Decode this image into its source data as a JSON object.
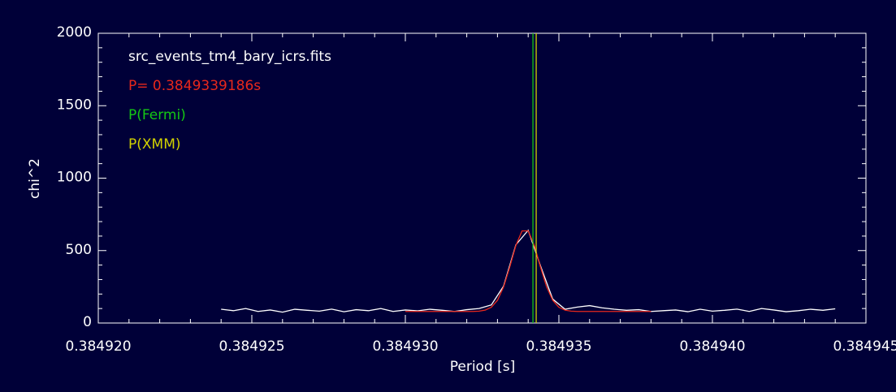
{
  "chart_data": {
    "type": "line",
    "title": "src_events_tm4_bary_icrs.fits",
    "x_label": "Period [s]",
    "y_label": "chi^2",
    "xlim": [
      0.38492,
      0.384945
    ],
    "ylim": [
      0,
      2000
    ],
    "xticks": [
      {
        "value": 0.38492,
        "label": "0.384920"
      },
      {
        "value": 0.384925,
        "label": "0.384925"
      },
      {
        "value": 0.38493,
        "label": "0.384930"
      },
      {
        "value": 0.384935,
        "label": "0.384935"
      },
      {
        "value": 0.38494,
        "label": "0.384940"
      },
      {
        "value": 0.384945,
        "label": "0.384945"
      }
    ],
    "yticks": [
      0,
      500,
      1000,
      1500,
      2000
    ],
    "x_minor": 5,
    "y_minor": 5,
    "background": "#000038",
    "axis_color": "#ffffff",
    "data": {
      "color": "#ffffff",
      "x": [
        0.384924,
        0.3849244,
        0.3849248,
        0.3849252,
        0.3849256,
        0.384926,
        0.3849264,
        0.3849268,
        0.3849272,
        0.3849276,
        0.384928,
        0.3849284,
        0.3849288,
        0.3849292,
        0.3849296,
        0.38493,
        0.3849304,
        0.3849308,
        0.3849312,
        0.3849316,
        0.384932,
        0.3849324,
        0.3849328,
        0.3849332,
        0.3849336,
        0.384934,
        0.3849344,
        0.3849348,
        0.3849352,
        0.3849356,
        0.384936,
        0.3849364,
        0.3849368,
        0.3849372,
        0.3849376,
        0.384938,
        0.3849384,
        0.3849388,
        0.3849392,
        0.3849396,
        0.38494,
        0.3849404,
        0.3849408,
        0.3849412,
        0.3849416,
        0.384942,
        0.3849424,
        0.3849428,
        0.3849432,
        0.3849436,
        0.384944
      ],
      "values": [
        95,
        85,
        100,
        80,
        90,
        75,
        95,
        88,
        82,
        96,
        78,
        92,
        85,
        100,
        80,
        90,
        84,
        95,
        88,
        80,
        92,
        100,
        125,
        255,
        540,
        640,
        395,
        165,
        95,
        110,
        120,
        105,
        95,
        88,
        92,
        80,
        85,
        90,
        78,
        95,
        82,
        88,
        96,
        80,
        100,
        90,
        78,
        85,
        95,
        88,
        98
      ]
    },
    "fit": {
      "name": "P= 0.3849339186s",
      "color": "#e8281c",
      "x": [
        0.38493,
        0.3849302,
        0.3849304,
        0.3849306,
        0.3849308,
        0.384931,
        0.3849312,
        0.3849314,
        0.3849316,
        0.3849318,
        0.384932,
        0.3849322,
        0.3849324,
        0.3849326,
        0.3849328,
        0.384933,
        0.3849332,
        0.3849334,
        0.3849336,
        0.3849338,
        0.384934,
        0.3849342,
        0.3849344,
        0.3849346,
        0.3849348,
        0.384935,
        0.3849352,
        0.3849354,
        0.3849356,
        0.3849358,
        0.384936,
        0.3849362,
        0.3849364,
        0.3849366,
        0.3849368,
        0.384937,
        0.3849372,
        0.3849374,
        0.3849376,
        0.3849378,
        0.384938
      ],
      "values": [
        80,
        80,
        80,
        80,
        80,
        80,
        80,
        80,
        80,
        80,
        80,
        80,
        82,
        89,
        109,
        157,
        250,
        387,
        536,
        636,
        636,
        536,
        387,
        250,
        157,
        109,
        89,
        82,
        80,
        80,
        80,
        80,
        80,
        80,
        80,
        80,
        80,
        80,
        80,
        80,
        80
      ]
    },
    "markers": [
      {
        "name": "P(Fermi)",
        "color": "#14c814",
        "x": 0.3849341556
      },
      {
        "name": "P(XMM)",
        "color": "#d2d200",
        "x": 0.3849342608
      }
    ]
  }
}
